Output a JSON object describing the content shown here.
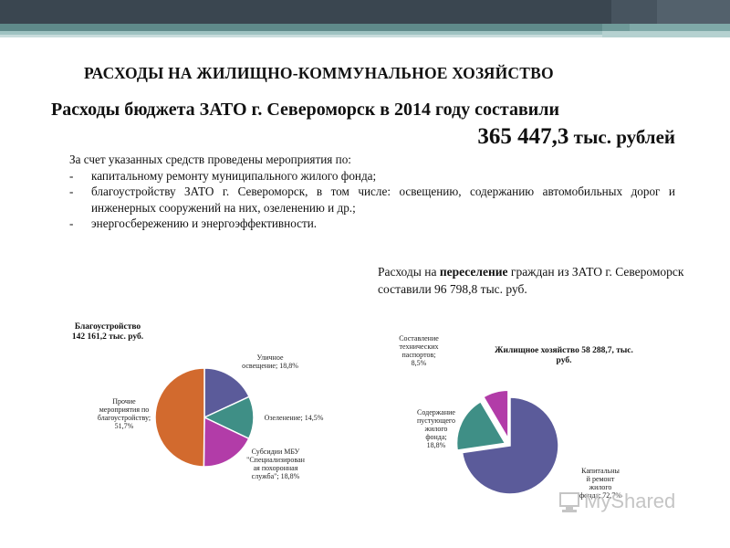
{
  "colors": {
    "bar_dark": "#3a4650",
    "bar_teal": "#5f8a8a",
    "bar_light": "#9fc3c2",
    "slice_blue": "#5b5b9a",
    "slice_teal": "#3f8f86",
    "slice_magenta": "#b23ca8",
    "slice_orange": "#d26a2e",
    "watermark": "#c5c5c5"
  },
  "header": {
    "section_title": "РАСХОДЫ НА ЖИЛИЩНО-КОММУНАЛЬНОЕ ХОЗЯЙСТВО",
    "budget_line": "Расходы бюджета ЗАТО г. Североморск в 2014 году составили",
    "budget_value": "365 447,3",
    "budget_unit": " тыс. рублей"
  },
  "measures": {
    "intro": "За счет указанных средств проведены мероприятия по:",
    "dash": "-",
    "items": [
      "капитальному ремонту муниципального жилого фонда;",
      "благоустройству ЗАТО г. Североморск, в том числе: освещению, содержанию автомобильных дорог и инженерных сооружений на них, озеленению и др.;",
      "энергосбережению и энергоэффективности."
    ]
  },
  "resettlement": {
    "prefix": "Расходы на ",
    "highlight": "переселение",
    "suffix": " граждан из ЗАТО г. Североморск составили 96 798,8 тыс. руб."
  },
  "chart_data": [
    {
      "type": "pie",
      "title": "Благоустройство",
      "subtitle": "142 161,2 тыс. руб.",
      "slices": [
        {
          "label": "Уличное освещение; 18,8%",
          "lines": [
            "Уличное",
            "освещение; 18,8%"
          ],
          "value": 18.8,
          "color": "#5b5b9a"
        },
        {
          "label": "Озеленение; 14,5%",
          "lines": [
            "Озеленение; 14,5%"
          ],
          "value": 14.5,
          "color": "#3f8f86"
        },
        {
          "label": "Субсидии МБУ \"Специализированная похоронная служба\"; 18,8%",
          "lines": [
            "Субсидии МБУ",
            "\"Специализирован",
            "ая похоронная",
            "служба\"; 18,8%"
          ],
          "value": 18.8,
          "color": "#b23ca8"
        },
        {
          "label": "Прочие мероприятия по благоустройству; 51,7%",
          "lines": [
            "Прочие",
            "мероприятия по",
            "благоустройству;",
            "51,7%"
          ],
          "value": 51.7,
          "color": "#d26a2e"
        }
      ]
    },
    {
      "type": "pie",
      "title": "Жилищное хозяйство 58 288,7, тыс.",
      "subtitle": "руб.",
      "slices": [
        {
          "label": "Капитальный ремонт жилого фонда; 72,7%",
          "lines": [
            "Капитальны",
            "й ремонт",
            "жилого",
            "фонда; 72,7%"
          ],
          "value": 72.7,
          "color": "#5b5b9a"
        },
        {
          "label": "Содержание пустующего жилого фонда; 18,8%",
          "lines": [
            "Содержание",
            "пустующего",
            "жилого",
            "фонда;",
            "18,8%"
          ],
          "value": 18.8,
          "color": "#3f8f86"
        },
        {
          "label": "Составление технических паспортов; 8,5%",
          "lines": [
            "Составление",
            "технических",
            "паспортов;",
            "8,5%"
          ],
          "value": 8.5,
          "color": "#b23ca8"
        }
      ]
    }
  ],
  "watermark": {
    "text": "MyShared"
  }
}
